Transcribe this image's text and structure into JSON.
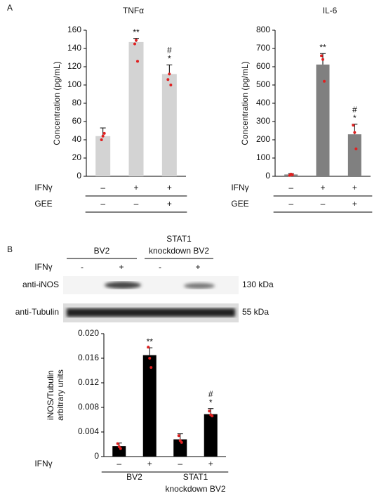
{
  "panel_labels": [
    "A",
    "B"
  ],
  "chart_data": [
    {
      "type": "bar",
      "title": "TNFα",
      "ylabel": [
        "Concentration (pg/mL)"
      ],
      "color": "#d3d3d3",
      "point_color": "#e02020",
      "values": [
        44,
        147,
        112
      ],
      "errors": [
        9,
        4,
        10
      ],
      "points": [
        [
          40,
          44,
          47
        ],
        [
          145,
          149,
          126
        ],
        [
          106,
          112,
          100
        ]
      ],
      "annotations": [
        [],
        [
          "**"
        ],
        [
          "#",
          "*"
        ]
      ],
      "ylim": [
        0,
        160
      ],
      "yticks": [
        0,
        20,
        40,
        60,
        80,
        100,
        120,
        140,
        160
      ],
      "conditions": [
        {
          "label": "IFNγ",
          "values": [
            "–",
            "+",
            "+"
          ]
        },
        {
          "label": "GEE",
          "values": [
            "–",
            "–",
            "+"
          ]
        }
      ]
    },
    {
      "type": "bar",
      "title": "IL-6",
      "ylabel": [
        "Concentration (pg/mL)"
      ],
      "color": "#808080",
      "point_color": "#e02020",
      "values": [
        10,
        612,
        230
      ],
      "errors": [
        5,
        60,
        55
      ],
      "points": [
        [
          5,
          12,
          8
        ],
        [
          660,
          640,
          520
        ],
        [
          280,
          240,
          150
        ]
      ],
      "annotations": [
        [],
        [
          "**"
        ],
        [
          "#",
          "*"
        ]
      ],
      "ylim": [
        0,
        800
      ],
      "yticks": [
        0,
        100,
        200,
        300,
        400,
        500,
        600,
        700,
        800
      ],
      "conditions": [
        {
          "label": "IFNγ",
          "values": [
            "–",
            "+",
            "+"
          ]
        },
        {
          "label": "GEE",
          "values": [
            "–",
            "–",
            "+"
          ]
        }
      ]
    },
    {
      "type": "bar",
      "ylabel": [
        "iNOS/Tubulin",
        "arbitrary units"
      ],
      "color": "#000000",
      "point_color": "#e02020",
      "values": [
        0.0017,
        0.0165,
        0.0028,
        0.0069
      ],
      "errors": [
        0.0005,
        0.0012,
        0.0009,
        0.0009
      ],
      "points": [
        [
          0.0021,
          0.0016,
          0.0013
        ],
        [
          0.0178,
          0.016,
          0.0145
        ],
        [
          0.0034,
          0.0026,
          0.0023
        ],
        [
          0.0074,
          0.0068,
          0.0066
        ]
      ],
      "annotations": [
        [],
        [
          "**"
        ],
        [],
        [
          "#",
          "*"
        ]
      ],
      "ylim": [
        0,
        0.02
      ],
      "yticks": [
        0,
        0.004,
        0.008,
        0.012,
        0.016,
        {
          "value": 0.02,
          "label": "0.020"
        }
      ],
      "conditions": [
        {
          "label": "IFNγ",
          "values": [
            "–",
            "+",
            "–",
            "+"
          ]
        }
      ],
      "groups": [
        [
          "BV2"
        ],
        [
          "STAT1",
          "knockdown  BV2"
        ]
      ]
    }
  ],
  "blot": {
    "groups": [
      [
        "BV2"
      ],
      [
        "STAT1",
        "knockdown  BV2"
      ]
    ],
    "lane_label": "IFNγ",
    "lanes": [
      "-",
      "+",
      "-",
      "+"
    ],
    "rows": [
      {
        "label": "anti-iNOS",
        "size": "130 kDa"
      },
      {
        "label": "anti-Tubulin",
        "size": "55 kDa"
      }
    ]
  }
}
